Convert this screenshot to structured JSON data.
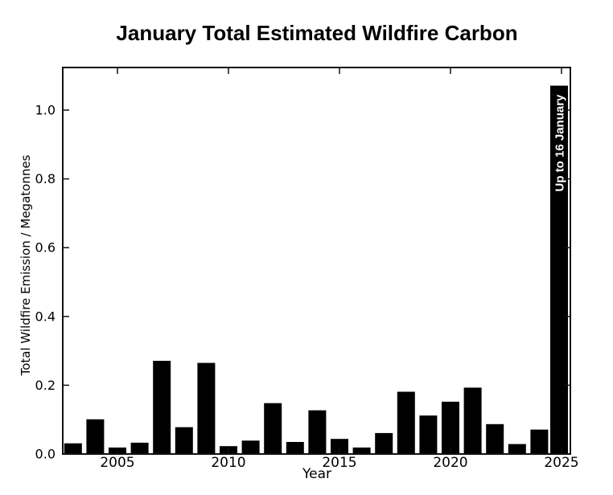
{
  "chart_data": {
    "type": "bar",
    "title": "January Total Estimated Wildfire Carbon",
    "xlabel": "Year",
    "ylabel": "Total Wildfire Emission / Megatonnes",
    "categories": [
      2003,
      2004,
      2005,
      2006,
      2007,
      2008,
      2009,
      2010,
      2011,
      2012,
      2013,
      2014,
      2015,
      2016,
      2017,
      2018,
      2019,
      2020,
      2021,
      2022,
      2023,
      2024,
      2025
    ],
    "values": [
      0.031,
      0.101,
      0.019,
      0.033,
      0.271,
      0.078,
      0.265,
      0.023,
      0.039,
      0.148,
      0.035,
      0.127,
      0.044,
      0.019,
      0.061,
      0.181,
      0.112,
      0.152,
      0.193,
      0.087,
      0.029,
      0.071,
      1.071
    ],
    "xticks": [
      2005,
      2010,
      2015,
      2020,
      2025
    ],
    "ytick_labels": [
      "0.0",
      "0.2",
      "0.4",
      "0.6",
      "0.8",
      "1.0"
    ],
    "ylim": [
      0,
      1.12
    ],
    "xlim": [
      2002.5,
      2025.4
    ],
    "grid": false,
    "legend": null,
    "tick_direction": "in",
    "bar_color": "#000000",
    "axis_color": "#111111",
    "text_color": "#000000",
    "background_color": "#ffffff",
    "annotation": {
      "text": "Up to 16 January",
      "category": 2025,
      "color": "#ffffff"
    }
  }
}
